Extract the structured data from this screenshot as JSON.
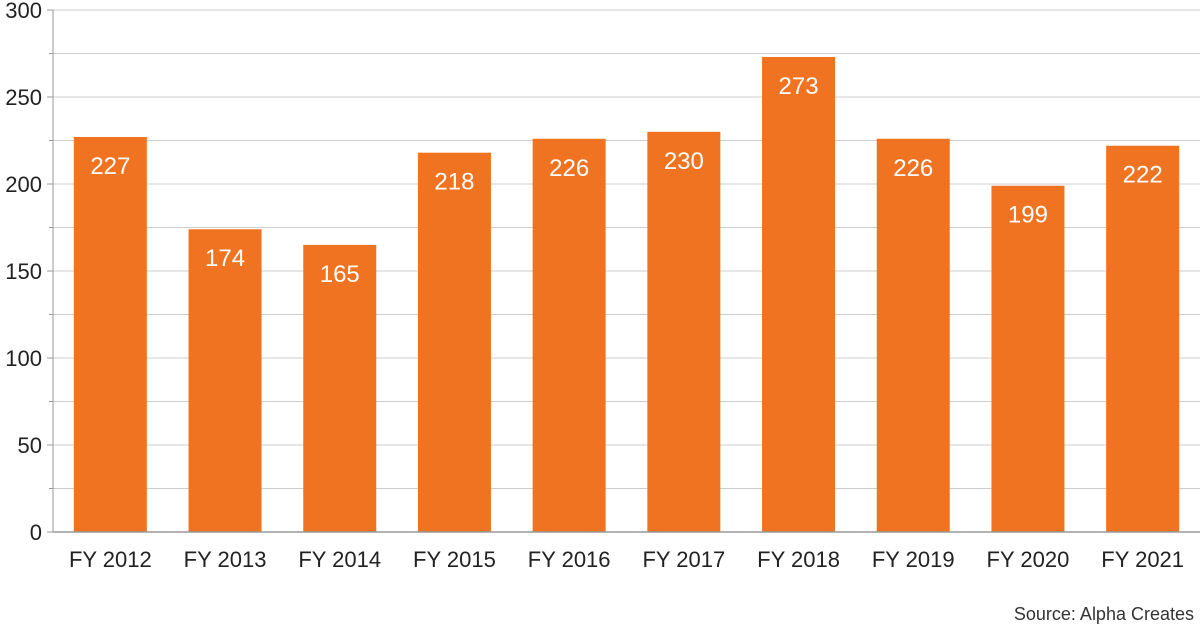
{
  "chart_data": {
    "type": "bar",
    "categories": [
      "FY 2012",
      "FY 2013",
      "FY 2014",
      "FY 2015",
      "FY 2016",
      "FY 2017",
      "FY 2018",
      "FY 2019",
      "FY 2020",
      "FY 2021"
    ],
    "values": [
      227,
      174,
      165,
      218,
      226,
      230,
      273,
      226,
      199,
      222
    ],
    "data_labels": [
      "227",
      "174",
      "165",
      "218",
      "226",
      "230",
      "273",
      "226",
      "199",
      "222"
    ],
    "y_ticks": [
      "0",
      "50",
      "100",
      "150",
      "200",
      "250",
      "300"
    ],
    "ylim": [
      0,
      300
    ],
    "grid": true,
    "bar_color": "#f07322",
    "grid_color": "#cccccc",
    "axis_color": "#999999"
  },
  "source": "Source: Alpha Creates"
}
